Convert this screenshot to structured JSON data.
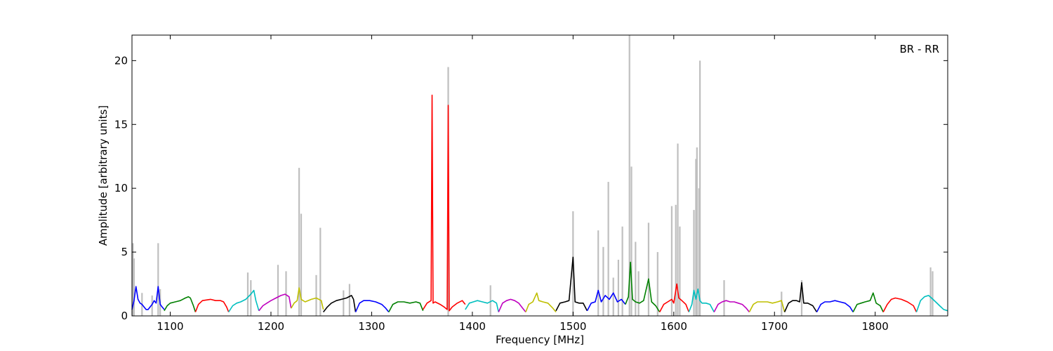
{
  "chart_data": {
    "type": "line",
    "xlabel": "Frequency [MHz]",
    "ylabel": "Amplitude [arbitrary units]",
    "annotation": "BR - RR",
    "xlim": [
      1062,
      1872
    ],
    "ylim": [
      0,
      22
    ],
    "xticks": [
      1100,
      1200,
      1300,
      1400,
      1500,
      1600,
      1700,
      1800
    ],
    "yticks": [
      0,
      5,
      10,
      15,
      20
    ],
    "grid": false,
    "legend": "none",
    "raw_spikes": [
      [
        1063,
        5.7
      ],
      [
        1064,
        4.5
      ],
      [
        1072,
        1.8
      ],
      [
        1082,
        1.6
      ],
      [
        1088,
        5.7
      ],
      [
        1090,
        2.1
      ],
      [
        1177,
        3.4
      ],
      [
        1180,
        2.8
      ],
      [
        1207,
        4.0
      ],
      [
        1215,
        3.5
      ],
      [
        1228,
        11.6
      ],
      [
        1230,
        8.0
      ],
      [
        1245,
        3.2
      ],
      [
        1249,
        6.9
      ],
      [
        1272,
        2.0
      ],
      [
        1278,
        2.5
      ],
      [
        1376,
        19.5
      ],
      [
        1418,
        2.4
      ],
      [
        1500,
        8.2
      ],
      [
        1525,
        6.7
      ],
      [
        1530,
        5.4
      ],
      [
        1535,
        10.5
      ],
      [
        1540,
        3.0
      ],
      [
        1545,
        4.4
      ],
      [
        1549,
        7.0
      ],
      [
        1556,
        22.0
      ],
      [
        1558,
        11.7
      ],
      [
        1562,
        5.8
      ],
      [
        1565,
        3.5
      ],
      [
        1575,
        7.3
      ],
      [
        1584,
        5.0
      ],
      [
        1598,
        8.6
      ],
      [
        1602,
        8.7
      ],
      [
        1604,
        13.5
      ],
      [
        1606,
        7.0
      ],
      [
        1620,
        8.3
      ],
      [
        1622,
        12.3
      ],
      [
        1623,
        13.2
      ],
      [
        1625,
        10.0
      ],
      [
        1626,
        20.0
      ],
      [
        1650,
        2.8
      ],
      [
        1707,
        1.9
      ],
      [
        1727,
        2.8
      ],
      [
        1855,
        3.8
      ],
      [
        1857,
        3.5
      ]
    ],
    "series": [
      {
        "color": "#0000ff",
        "x": [
          1062,
          1064,
          1066,
          1068,
          1070,
          1072,
          1074,
          1076,
          1078,
          1080,
          1082,
          1084,
          1086,
          1088,
          1090,
          1092,
          1094
        ],
        "y": [
          0.5,
          1.2,
          2.3,
          1.3,
          1.0,
          0.9,
          0.7,
          0.5,
          0.5,
          0.7,
          0.9,
          1.2,
          1.0,
          2.3,
          0.9,
          0.7,
          0.5
        ]
      },
      {
        "color": "#008000",
        "x": [
          1094,
          1097,
          1100,
          1105,
          1110,
          1115,
          1118,
          1120,
          1123,
          1125
        ],
        "y": [
          0.4,
          0.8,
          1.0,
          1.1,
          1.2,
          1.4,
          1.5,
          1.4,
          0.8,
          0.3
        ]
      },
      {
        "color": "#ff0000",
        "x": [
          1125,
          1128,
          1132,
          1140,
          1145,
          1150,
          1153,
          1156,
          1158
        ],
        "y": [
          0.3,
          0.9,
          1.2,
          1.3,
          1.2,
          1.2,
          1.1,
          0.7,
          0.3
        ]
      },
      {
        "color": "#00bfbf",
        "x": [
          1158,
          1162,
          1166,
          1170,
          1175,
          1180,
          1183,
          1185,
          1188
        ],
        "y": [
          0.3,
          0.8,
          1.0,
          1.1,
          1.3,
          1.7,
          2.0,
          1.2,
          0.4
        ]
      },
      {
        "color": "#bf00bf",
        "x": [
          1188,
          1192,
          1196,
          1200,
          1205,
          1210,
          1214,
          1218,
          1220
        ],
        "y": [
          0.4,
          0.8,
          1.0,
          1.2,
          1.4,
          1.6,
          1.7,
          1.5,
          0.6
        ]
      },
      {
        "color": "#bfbf00",
        "x": [
          1220,
          1223,
          1226,
          1228,
          1230,
          1234,
          1240,
          1245,
          1250,
          1252
        ],
        "y": [
          0.6,
          1.0,
          1.2,
          2.2,
          1.3,
          1.1,
          1.3,
          1.4,
          1.2,
          0.5
        ]
      },
      {
        "color": "#000000",
        "x": [
          1252,
          1256,
          1260,
          1265,
          1270,
          1275,
          1280,
          1282,
          1284
        ],
        "y": [
          0.3,
          0.7,
          1.0,
          1.2,
          1.3,
          1.4,
          1.6,
          1.3,
          0.3
        ]
      },
      {
        "color": "#0000ff",
        "x": [
          1284,
          1288,
          1292,
          1298,
          1304,
          1310,
          1314,
          1317
        ],
        "y": [
          0.3,
          1.0,
          1.2,
          1.2,
          1.1,
          0.9,
          0.6,
          0.3
        ]
      },
      {
        "color": "#008000",
        "x": [
          1317,
          1321,
          1326,
          1332,
          1338,
          1344,
          1348,
          1351
        ],
        "y": [
          0.3,
          0.9,
          1.1,
          1.1,
          1.0,
          1.1,
          1.0,
          0.4
        ]
      },
      {
        "color": "#ff0000",
        "x": [
          1351,
          1355,
          1359,
          1360,
          1361,
          1363,
          1368,
          1372,
          1375,
          1376,
          1377,
          1380,
          1385,
          1390,
          1393
        ],
        "y": [
          0.5,
          1.0,
          1.2,
          17.3,
          1.0,
          1.1,
          0.9,
          0.7,
          0.5,
          16.5,
          0.4,
          0.7,
          1.0,
          1.2,
          0.9
        ]
      },
      {
        "color": "#00bfbf",
        "x": [
          1393,
          1397,
          1401,
          1405,
          1410,
          1415,
          1420,
          1424,
          1426
        ],
        "y": [
          0.5,
          1.0,
          1.1,
          1.2,
          1.1,
          1.0,
          1.2,
          1.0,
          0.3
        ]
      },
      {
        "color": "#bf00bf",
        "x": [
          1426,
          1430,
          1434,
          1438,
          1442,
          1446,
          1450,
          1453
        ],
        "y": [
          0.3,
          1.0,
          1.2,
          1.3,
          1.2,
          1.0,
          0.6,
          0.3
        ]
      },
      {
        "color": "#bfbf00",
        "x": [
          1453,
          1456,
          1460,
          1464,
          1466,
          1470,
          1475,
          1480,
          1483
        ],
        "y": [
          0.3,
          0.9,
          1.1,
          1.8,
          1.2,
          1.1,
          1.0,
          0.6,
          0.3
        ]
      },
      {
        "color": "#000000",
        "x": [
          1483,
          1487,
          1492,
          1496,
          1500,
          1502,
          1506,
          1510,
          1514
        ],
        "y": [
          0.4,
          1.0,
          1.1,
          1.2,
          4.6,
          1.1,
          1.0,
          1.0,
          0.4
        ]
      },
      {
        "color": "#0000ff",
        "x": [
          1514,
          1518,
          1522,
          1525,
          1528,
          1532,
          1536,
          1540,
          1544,
          1548,
          1552
        ],
        "y": [
          0.4,
          1.0,
          1.1,
          2.0,
          1.1,
          1.6,
          1.3,
          1.8,
          1.1,
          1.3,
          0.9
        ]
      },
      {
        "color": "#008000",
        "x": [
          1552,
          1555,
          1557,
          1559,
          1562,
          1566,
          1570,
          1575,
          1578,
          1582,
          1586
        ],
        "y": [
          0.9,
          1.5,
          4.2,
          1.3,
          1.1,
          1.0,
          1.2,
          2.9,
          1.1,
          0.8,
          0.3
        ]
      },
      {
        "color": "#ff0000",
        "x": [
          1586,
          1590,
          1594,
          1598,
          1600,
          1603,
          1605,
          1608,
          1612,
          1615
        ],
        "y": [
          0.3,
          0.9,
          1.1,
          1.3,
          1.0,
          2.5,
          1.4,
          1.2,
          0.9,
          0.3
        ]
      },
      {
        "color": "#00bfbf",
        "x": [
          1615,
          1618,
          1620,
          1622,
          1624,
          1626,
          1628,
          1632,
          1636,
          1640
        ],
        "y": [
          0.3,
          0.9,
          2.0,
          1.3,
          2.1,
          1.2,
          1.0,
          1.0,
          0.9,
          0.3
        ]
      },
      {
        "color": "#bf00bf",
        "x": [
          1640,
          1644,
          1648,
          1652,
          1656,
          1660,
          1664,
          1668,
          1672,
          1675
        ],
        "y": [
          0.3,
          0.9,
          1.1,
          1.2,
          1.1,
          1.1,
          1.0,
          0.9,
          0.6,
          0.3
        ]
      },
      {
        "color": "#bfbf00",
        "x": [
          1675,
          1679,
          1683,
          1688,
          1693,
          1698,
          1703,
          1707,
          1710
        ],
        "y": [
          0.3,
          0.9,
          1.1,
          1.1,
          1.1,
          1.0,
          1.1,
          1.2,
          0.3
        ]
      },
      {
        "color": "#000000",
        "x": [
          1710,
          1714,
          1718,
          1722,
          1725,
          1727,
          1729,
          1733,
          1738,
          1742
        ],
        "y": [
          0.3,
          1.0,
          1.2,
          1.2,
          1.1,
          2.6,
          1.0,
          1.0,
          0.8,
          0.3
        ]
      },
      {
        "color": "#0000ff",
        "x": [
          1742,
          1746,
          1750,
          1755,
          1760,
          1765,
          1770,
          1775,
          1778
        ],
        "y": [
          0.3,
          0.9,
          1.1,
          1.1,
          1.2,
          1.1,
          1.0,
          0.7,
          0.3
        ]
      },
      {
        "color": "#008000",
        "x": [
          1778,
          1782,
          1786,
          1790,
          1795,
          1798,
          1801,
          1805,
          1808
        ],
        "y": [
          0.3,
          0.9,
          1.0,
          1.1,
          1.2,
          1.8,
          1.0,
          0.8,
          0.3
        ]
      },
      {
        "color": "#ff0000",
        "x": [
          1808,
          1812,
          1816,
          1820,
          1826,
          1832,
          1838,
          1841
        ],
        "y": [
          0.3,
          0.9,
          1.3,
          1.4,
          1.3,
          1.1,
          0.8,
          0.3
        ]
      },
      {
        "color": "#00bfbf",
        "x": [
          1841,
          1845,
          1849,
          1853,
          1856,
          1860,
          1864,
          1868,
          1872
        ],
        "y": [
          0.3,
          1.2,
          1.5,
          1.6,
          1.4,
          1.1,
          0.8,
          0.5,
          0.4
        ]
      }
    ]
  }
}
